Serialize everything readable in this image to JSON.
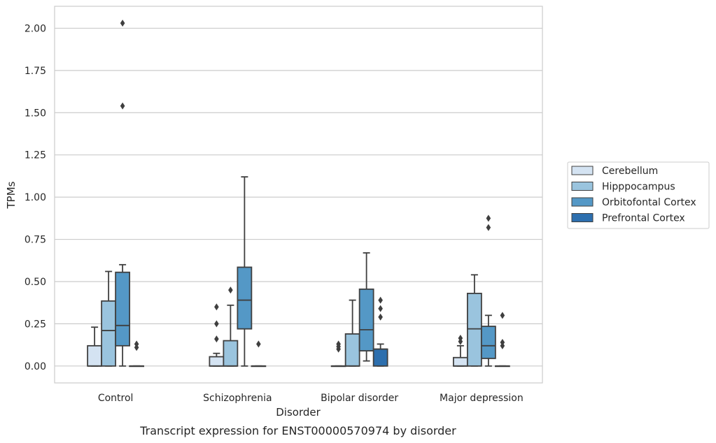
{
  "chart_data": {
    "type": "box",
    "caption": "Transcript expression for ENST00000570974 by disorder",
    "xlabel": "Disorder",
    "ylabel": "TPMs",
    "ylim": [
      -0.1,
      2.13
    ],
    "yticks": [
      "0.00",
      "0.25",
      "0.50",
      "0.75",
      "1.00",
      "1.25",
      "1.50",
      "1.75",
      "2.00"
    ],
    "categories": [
      "Control",
      "Schizophrenia",
      "Bipolar disorder",
      "Major depression"
    ],
    "grid": true,
    "legend_position": "right",
    "series": [
      {
        "name": "Cerebellum",
        "color": "#d4e3f2",
        "boxes": [
          {
            "whislo": 0,
            "q1": 0,
            "med": 0,
            "q3": 0.12,
            "whishi": 0.23,
            "fliers": []
          },
          {
            "whislo": 0,
            "q1": 0,
            "med": 0,
            "q3": 0.055,
            "whishi": 0.075,
            "fliers": [
              0.16,
              0.25,
              0.35
            ]
          },
          {
            "whislo": 0,
            "q1": 0,
            "med": 0,
            "q3": 0,
            "whishi": 0,
            "fliers": [
              0.1,
              0.115,
              0.13
            ]
          },
          {
            "whislo": 0,
            "q1": 0,
            "med": 0,
            "q3": 0.05,
            "whishi": 0.12,
            "fliers": [
              0.145,
              0.165
            ]
          }
        ]
      },
      {
        "name": "Hipppocampus",
        "color": "#9ac4de",
        "boxes": [
          {
            "whislo": 0,
            "q1": 0,
            "med": 0.21,
            "q3": 0.385,
            "whishi": 0.56,
            "fliers": []
          },
          {
            "whislo": 0,
            "q1": 0,
            "med": 0,
            "q3": 0.15,
            "whishi": 0.36,
            "fliers": [
              0.45
            ]
          },
          {
            "whislo": 0,
            "q1": 0,
            "med": 0,
            "q3": 0.19,
            "whishi": 0.39,
            "fliers": []
          },
          {
            "whislo": 0,
            "q1": 0,
            "med": 0.22,
            "q3": 0.43,
            "whishi": 0.54,
            "fliers": []
          }
        ]
      },
      {
        "name": "Orbitofontal Cortex",
        "color": "#5498c6",
        "boxes": [
          {
            "whislo": 0,
            "q1": 0.12,
            "med": 0.24,
            "q3": 0.555,
            "whishi": 0.6,
            "fliers": [
              1.54,
              2.03
            ]
          },
          {
            "whislo": 0,
            "q1": 0.22,
            "med": 0.39,
            "q3": 0.585,
            "whishi": 1.12,
            "fliers": []
          },
          {
            "whislo": 0.03,
            "q1": 0.09,
            "med": 0.215,
            "q3": 0.455,
            "whishi": 0.67,
            "fliers": []
          },
          {
            "whislo": 0,
            "q1": 0.045,
            "med": 0.12,
            "q3": 0.235,
            "whishi": 0.3,
            "fliers": [
              0.82,
              0.875
            ]
          }
        ]
      },
      {
        "name": "Prefrontal Cortex",
        "color": "#2d6fae",
        "boxes": [
          {
            "whislo": 0,
            "q1": 0,
            "med": 0,
            "q3": 0,
            "whishi": 0,
            "fliers": [
              0.11,
              0.13
            ]
          },
          {
            "whislo": 0,
            "q1": 0,
            "med": 0,
            "q3": 0,
            "whishi": 0,
            "fliers": [
              0.13
            ]
          },
          {
            "whislo": 0,
            "q1": 0,
            "med": 0.1,
            "q3": 0.1,
            "whishi": 0.13,
            "fliers": [
              0.29,
              0.34,
              0.39
            ]
          },
          {
            "whislo": 0,
            "q1": 0,
            "med": 0,
            "q3": 0,
            "whishi": 0,
            "fliers": [
              0.12,
              0.14,
              0.3
            ]
          }
        ]
      }
    ]
  }
}
